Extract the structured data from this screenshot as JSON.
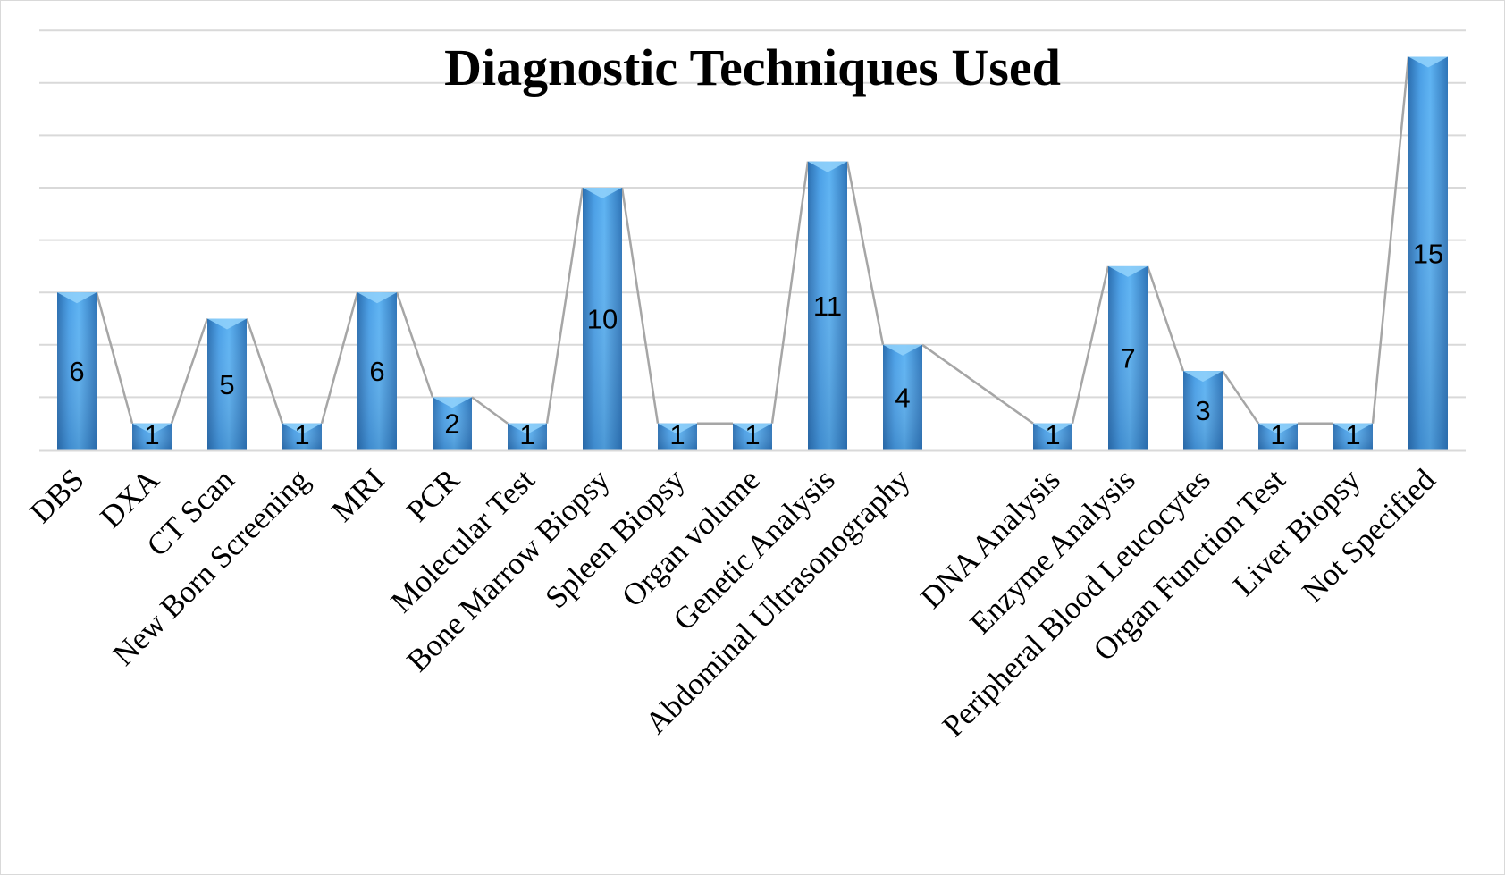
{
  "chart_data": {
    "type": "bar",
    "title": "Diagnostic Techniques Used",
    "xlabel": "",
    "ylabel": "",
    "categories": [
      "DBS",
      "DXA",
      "CT Scan",
      "New Born Screening",
      "MRI",
      "PCR",
      "Molecular Test",
      "Bone Marrow Biopsy",
      "Spleen Biopsy",
      "Organ volume",
      "Genetic Analysis",
      "Abdominal Ultrasonography",
      "",
      "DNA Analysis",
      "Enzyme Analysis",
      "Peripheral Blood Leucocytes",
      "Organ Function Test",
      "Liver Biopsy",
      "Not Specified"
    ],
    "values": [
      6,
      1,
      5,
      1,
      6,
      2,
      1,
      10,
      1,
      1,
      11,
      4,
      null,
      1,
      7,
      3,
      1,
      1,
      15
    ],
    "ylim": [
      0,
      16
    ],
    "grid": true,
    "legend": "none",
    "colors": {
      "bar_light": "#5aaef0",
      "bar_mid": "#3d8fd6",
      "bar_dark": "#2a6eb0",
      "bar_top": "#8fd0fb",
      "connector_line": "#a6a6a6",
      "gridline": "#d9d9d9"
    }
  }
}
